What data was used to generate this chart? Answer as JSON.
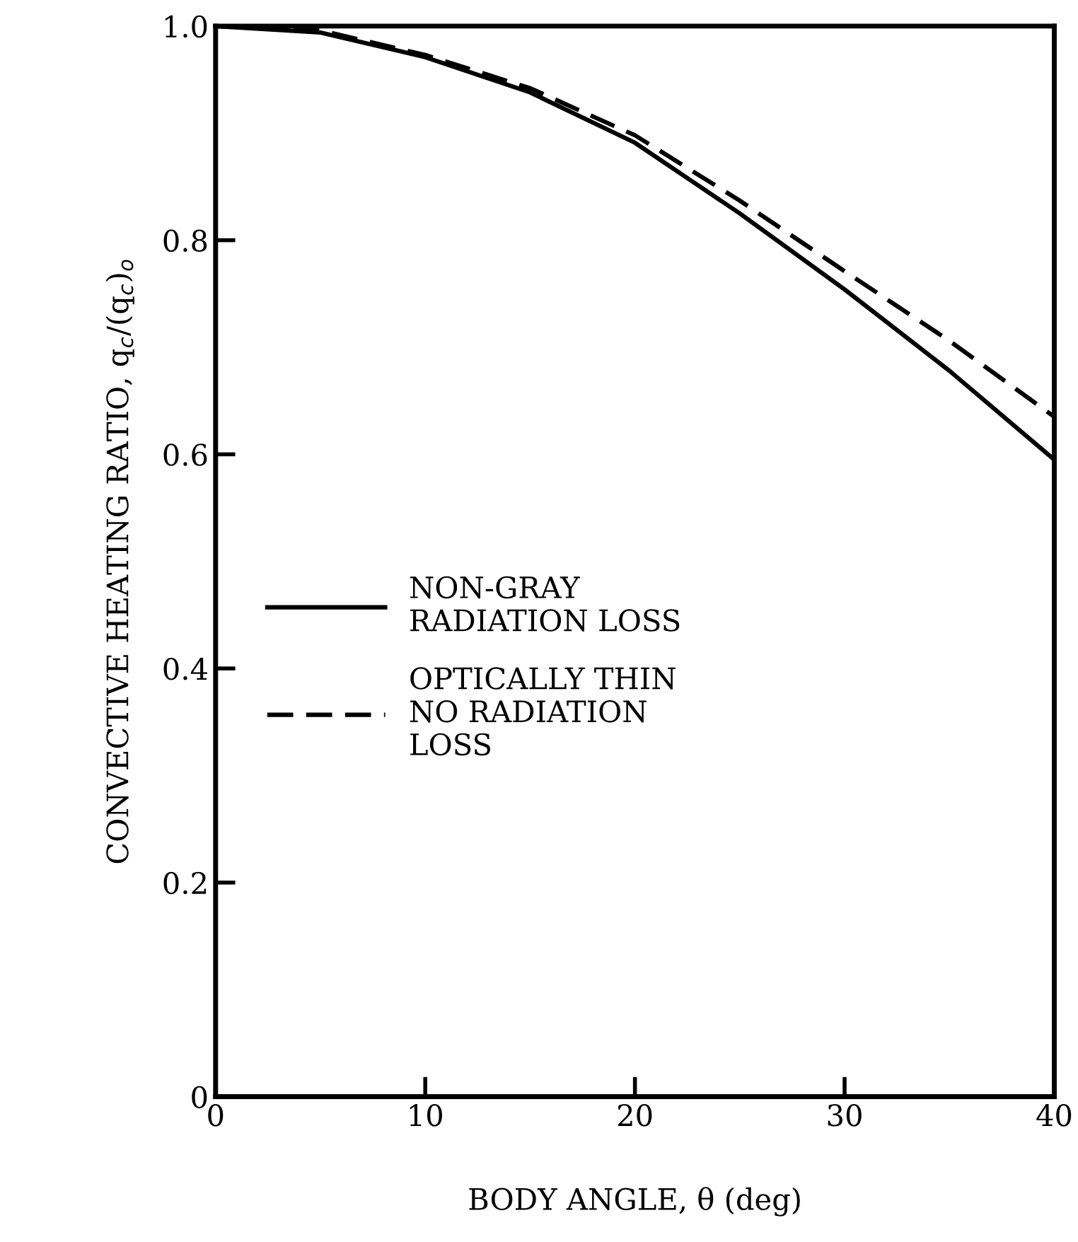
{
  "chart_data": {
    "type": "line",
    "xlabel": "BODY ANGLE, θ (deg)",
    "ylabel": "CONVECTIVE HEATING RATIO, q$_{c}$/(q$_{c}$)$_{o}$",
    "x": [
      0,
      5,
      10,
      15,
      20,
      25,
      30,
      35,
      40
    ],
    "series": [
      {
        "name": "NON-GRAY\nRADIATION LOSS",
        "color": "#000000",
        "line_style": "solid",
        "values": [
          1.0,
          0.994,
          0.971,
          0.938,
          0.891,
          0.825,
          0.754,
          0.678,
          0.595
        ]
      },
      {
        "name": "OPTICALLY THIN\nNO RADIATION\nLOSS",
        "color": "#000000",
        "line_style": "dashed",
        "values": [
          1.0,
          0.996,
          0.973,
          0.942,
          0.898,
          0.837,
          0.771,
          0.706,
          0.635
        ]
      }
    ],
    "xlim": [
      0,
      40
    ],
    "xticks": [
      0,
      10,
      20,
      30,
      40
    ],
    "ylim": [
      0,
      1.0
    ],
    "yticks": [
      0,
      {
        "value": 0.2,
        "label": "0.2"
      },
      {
        "value": 0.4,
        "label": "0.4"
      },
      {
        "value": 0.6,
        "label": "0.6"
      },
      {
        "value": 0.8,
        "label": "0.8"
      },
      {
        "value": 1.0,
        "label": "1.0"
      }
    ],
    "grid": false,
    "legend": "left",
    "marker": "none"
  }
}
